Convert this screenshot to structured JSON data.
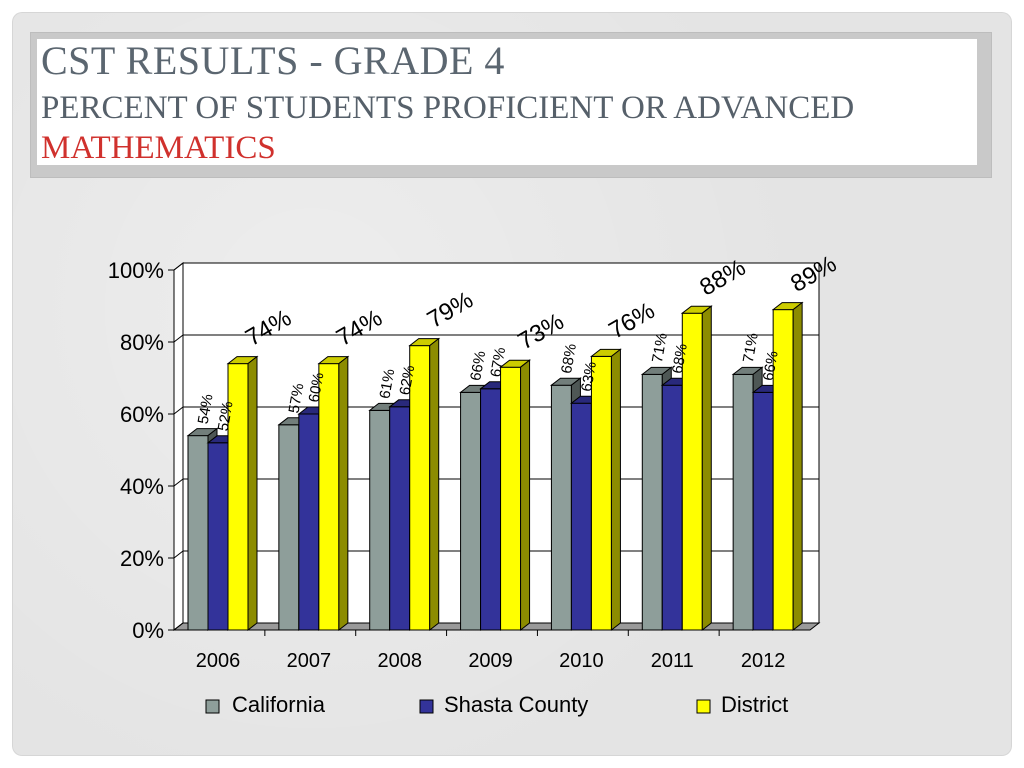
{
  "title": {
    "line1": "CST RESULTS - GRADE 4",
    "line2": "PERCENT OF STUDENTS PROFICIENT OR ADVANCED",
    "line3": "MATHEMATICS"
  },
  "colors": {
    "title": "#5b6670",
    "subject": "#d0312d",
    "california": "#8e9e9a",
    "shasta": "#33339a",
    "district": "#ffff00"
  },
  "chart_data": {
    "type": "bar",
    "categories": [
      "2006",
      "2007",
      "2008",
      "2009",
      "2010",
      "2011",
      "2012"
    ],
    "series": [
      {
        "name": "California",
        "values": [
          54,
          57,
          61,
          66,
          68,
          71,
          71
        ],
        "labels": [
          "54%",
          "57%",
          "61%",
          "66%",
          "68%",
          "71%",
          "71%"
        ]
      },
      {
        "name": "Shasta County",
        "values": [
          52,
          60,
          62,
          67,
          63,
          68,
          66
        ],
        "labels": [
          "52%",
          "60%",
          "62%",
          "67%",
          "63%",
          "68%",
          "66%"
        ]
      },
      {
        "name": "District",
        "values": [
          74,
          74,
          79,
          73,
          76,
          88,
          89
        ],
        "labels": [
          "74%",
          "74%",
          "79%",
          "73%",
          "76%",
          "88%",
          "89%"
        ]
      }
    ],
    "y_ticks": [
      "0%",
      "20%",
      "40%",
      "60%",
      "80%",
      "100%"
    ],
    "ylim": [
      0,
      100
    ],
    "grid": true,
    "legend": "bottom",
    "xlabel": "",
    "ylabel": ""
  }
}
